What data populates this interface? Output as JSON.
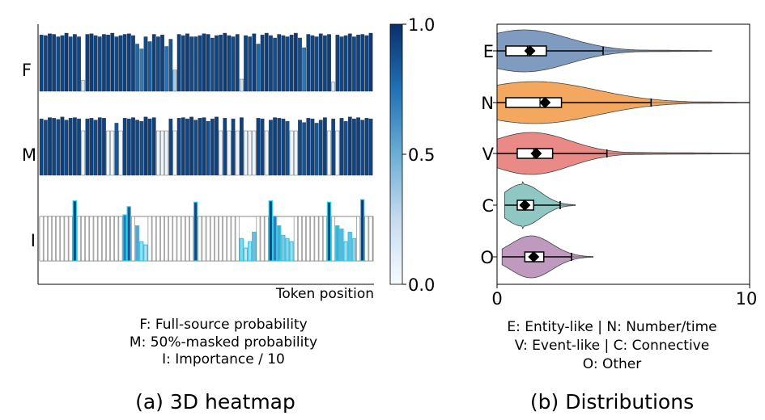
{
  "chart_data": [
    {
      "type": "heatmap",
      "rows": [
        "F",
        "M",
        "I"
      ],
      "xlabel": "Token position",
      "colorbar": {
        "min": 0.0,
        "max": 1.0,
        "ticks": [
          "1.0",
          "0.5",
          "0.0"
        ],
        "colormap": "Blues"
      },
      "num_tokens": 80,
      "row_values": {
        "F": [
          0.93,
          0.92,
          0.95,
          0.94,
          0.9,
          0.92,
          0.96,
          0.9,
          0.94,
          0.9,
          0.18,
          0.94,
          0.95,
          0.92,
          0.9,
          0.94,
          0.93,
          0.96,
          0.9,
          0.92,
          0.94,
          0.95,
          0.92,
          0.78,
          0.7,
          0.9,
          0.82,
          0.94,
          0.9,
          0.93,
          0.74,
          0.86,
          0.35,
          0.94,
          0.92,
          0.95,
          0.9,
          0.9,
          0.92,
          0.95,
          0.94,
          0.88,
          0.92,
          0.93,
          0.96,
          0.92,
          0.9,
          0.94,
          0.2,
          0.92,
          0.9,
          0.95,
          0.78,
          0.93,
          0.96,
          0.92,
          0.88,
          0.94,
          0.92,
          0.9,
          0.93,
          0.96,
          0.88,
          0.72,
          0.94,
          0.92,
          0.9,
          0.95,
          0.92,
          0.94,
          0.15,
          0.93,
          0.9,
          0.92,
          0.95,
          0.9,
          0.93,
          0.94,
          0.92,
          0.96
        ],
        "M": [
          0.92,
          0.9,
          0.94,
          0.93,
          0.91,
          0.95,
          0.9,
          0.93,
          0.94,
          0.92,
          0.05,
          0.92,
          0.93,
          0.9,
          0.94,
          0.93,
          0.05,
          0.05,
          0.85,
          0.05,
          0.93,
          0.92,
          0.94,
          0.9,
          0.88,
          0.95,
          0.92,
          0.94,
          0.05,
          0.05,
          0.05,
          0.92,
          0.05,
          0.93,
          0.94,
          0.92,
          0.95,
          0.9,
          0.93,
          0.94,
          0.88,
          0.92,
          0.95,
          0.05,
          0.93,
          0.05,
          0.92,
          0.05,
          0.94,
          0.05,
          0.05,
          0.05,
          0.93,
          0.92,
          0.05,
          0.9,
          0.94,
          0.93,
          0.92,
          0.88,
          0.05,
          0.05,
          0.9,
          0.86,
          0.93,
          0.92,
          0.85,
          0.9,
          0.94,
          0.05,
          0.92,
          0.05,
          0.93,
          0.88,
          0.95,
          0.92,
          0.94,
          0.9,
          0.93,
          0.92
        ],
        "I": [
          0.02,
          0.02,
          0.03,
          0.02,
          0.02,
          0.02,
          0.03,
          0.02,
          0.94,
          0.02,
          0.02,
          0.02,
          0.02,
          0.03,
          0.02,
          0.02,
          0.02,
          0.02,
          0.02,
          0.02,
          0.72,
          0.85,
          0.02,
          0.55,
          0.3,
          0.25,
          0.02,
          0.02,
          0.02,
          0.02,
          0.02,
          0.02,
          0.02,
          0.02,
          0.02,
          0.02,
          0.02,
          0.92,
          0.02,
          0.02,
          0.02,
          0.02,
          0.02,
          0.02,
          0.02,
          0.02,
          0.02,
          0.02,
          0.35,
          0.2,
          0.3,
          0.45,
          0.02,
          0.02,
          0.02,
          0.94,
          0.7,
          0.55,
          0.4,
          0.35,
          0.3,
          0.02,
          0.02,
          0.02,
          0.02,
          0.02,
          0.02,
          0.02,
          0.02,
          0.92,
          0.02,
          0.55,
          0.5,
          0.3,
          0.45,
          0.35,
          0.02,
          0.96,
          0.02,
          0.02
        ]
      },
      "highlight_tokens": [
        8,
        20,
        21,
        23,
        24,
        25,
        37,
        48,
        49,
        50,
        51,
        55,
        56,
        57,
        58,
        59,
        60,
        69,
        71,
        72,
        73,
        74,
        75,
        77
      ],
      "legend_lines": [
        "F: Full-source probability",
        "M: 50%-masked probability",
        "I: Importance / 10"
      ],
      "caption": "(a) 3D heatmap"
    },
    {
      "type": "violin",
      "categories": [
        "E",
        "N",
        "V",
        "C",
        "O"
      ],
      "xlim": [
        0,
        10
      ],
      "xticks": [
        "0",
        "10"
      ],
      "colors": [
        "#7f9cc0",
        "#f4a75e",
        "#ea8a87",
        "#8fc7c2",
        "#bf99be"
      ],
      "stats": [
        {
          "min": 0.0,
          "q1": 0.35,
          "median": 1.2,
          "mean": 1.3,
          "q3": 1.95,
          "whisker_high": 4.2,
          "max": 8.5
        },
        {
          "min": 0.0,
          "q1": 0.35,
          "median": 1.7,
          "mean": 1.9,
          "q3": 2.55,
          "whisker_high": 6.1,
          "max": 10.0
        },
        {
          "min": 0.0,
          "q1": 0.8,
          "median": 1.45,
          "mean": 1.55,
          "q3": 2.2,
          "whisker_high": 4.35,
          "max": 10.0
        },
        {
          "min": 0.3,
          "q1": 0.8,
          "median": 1.05,
          "mean": 1.1,
          "q3": 1.45,
          "whisker_high": 2.5,
          "max": 3.1
        },
        {
          "min": 0.2,
          "q1": 1.1,
          "median": 1.4,
          "mean": 1.45,
          "q3": 1.85,
          "whisker_high": 2.95,
          "max": 3.8
        }
      ],
      "legend_lines": [
        "E: Entity-like | N: Number/time",
        "V: Event-like | C: Connective",
        "O: Other"
      ],
      "caption": "(b) Distributions"
    }
  ]
}
